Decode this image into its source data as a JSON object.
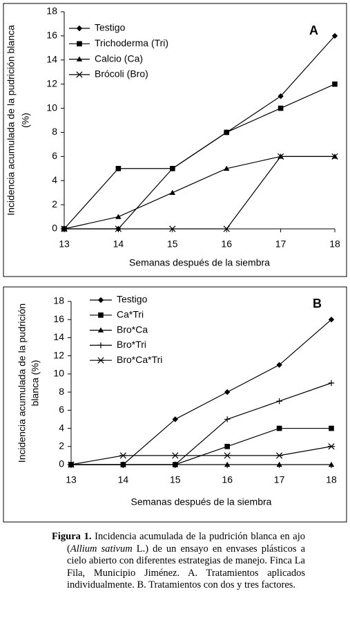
{
  "chart_data": [
    {
      "type": "line",
      "panel_label": "A",
      "ylabel": [
        "Incidencia acumulada de la pudrición blanca",
        "(%)"
      ],
      "xlabel": "Semanas después de la siembra",
      "x": [
        13,
        14,
        15,
        16,
        17,
        18
      ],
      "xlim": [
        13,
        18
      ],
      "xticks": [
        13,
        14,
        15,
        16,
        17,
        18
      ],
      "ylim": [
        0,
        18
      ],
      "yticks": [
        0,
        2,
        4,
        6,
        8,
        10,
        12,
        14,
        16,
        18
      ],
      "series": [
        {
          "name": "Testigo",
          "color": "#000000",
          "marker": "diamond",
          "values": [
            0,
            0,
            5,
            8,
            11,
            16
          ]
        },
        {
          "name": "Trichoderma (Tri)",
          "color": "#000000",
          "marker": "square",
          "values": [
            0,
            5,
            5,
            8,
            10,
            12
          ]
        },
        {
          "name": "Calcio (Ca)",
          "color": "#000000",
          "marker": "triangle",
          "values": [
            0,
            1,
            3,
            5,
            6,
            6
          ]
        },
        {
          "name": "Brócoli (Bro)",
          "color": "#000000",
          "marker": "x",
          "values": [
            0,
            0,
            0,
            0,
            6,
            6
          ]
        }
      ]
    },
    {
      "type": "line",
      "panel_label": "B",
      "ylabel": [
        "Incidencia acumulada de la pudrición",
        "blanca (%)"
      ],
      "xlabel": "Semanas después de la siembra",
      "x": [
        13,
        14,
        15,
        16,
        17,
        18
      ],
      "xlim": [
        13,
        18
      ],
      "xticks": [
        13,
        14,
        15,
        16,
        17,
        18
      ],
      "ylim": [
        0,
        18
      ],
      "yticks": [
        0,
        2,
        4,
        6,
        8,
        10,
        12,
        14,
        16,
        18
      ],
      "series": [
        {
          "name": "Testigo",
          "color": "#000000",
          "marker": "diamond",
          "values": [
            0,
            0,
            5,
            8,
            11,
            16
          ]
        },
        {
          "name": "Ca*Tri",
          "color": "#000000",
          "marker": "square",
          "values": [
            0,
            0,
            0,
            2,
            4,
            4
          ]
        },
        {
          "name": "Bro*Ca",
          "color": "#000000",
          "marker": "triangle",
          "values": [
            0,
            0,
            0,
            0,
            0,
            0
          ]
        },
        {
          "name": "Bro*Tri",
          "color": "#000000",
          "marker": "plus",
          "values": [
            0,
            0,
            0,
            5,
            7,
            9
          ]
        },
        {
          "name": "Bro*Ca*Tri",
          "color": "#000000",
          "marker": "asterisk",
          "values": [
            0,
            1,
            1,
            1,
            1,
            2
          ]
        }
      ]
    }
  ],
  "caption": {
    "label": "Figura 1.",
    "text_before": " Incidencia acumulada de la pudrición blanca en ajo (",
    "italic": "Allium sativum",
    "text_after": " L.) de un ensayo en envases plásticos a cielo abierto con diferentes estrategias de manejo. Finca La Fila, Municipio Jiménez. A. Tratamientos aplicados individualmente. B. Tratamientos con dos y tres factores."
  }
}
